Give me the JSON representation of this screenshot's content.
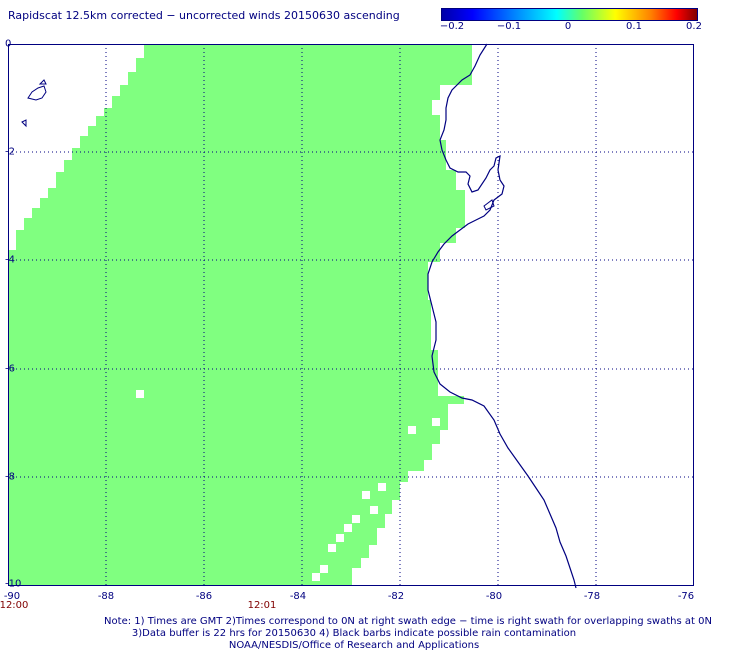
{
  "title": "Rapidscat 12.5km corrected − uncorrected winds 20150630 ascending",
  "colorbar": {
    "labels": [
      "−0.2",
      "−0.1",
      "0",
      "0.1",
      "0.2"
    ],
    "colors": [
      "#0000a8",
      "#0000ff",
      "#00ffff",
      "#66ff66",
      "#ffff00",
      "#ff8000",
      "#ff0000",
      "#800000"
    ]
  },
  "map": {
    "lon_range": [
      -90,
      -76
    ],
    "lat_range": [
      -10,
      0
    ],
    "x_tick_labels": [
      "-90",
      "-88",
      "-86",
      "-84",
      "-82",
      "-80",
      "-78",
      "-76"
    ],
    "y_tick_labels": [
      "0",
      "-2",
      "-4",
      "-6",
      "-8",
      "-10"
    ],
    "swath_color": "#80ff80",
    "coast_color": "#000080",
    "grid": "dotted"
  },
  "times": [
    "12:00",
    "12:01"
  ],
  "notes": [
    "Note: 1) Times are GMT 2)Times correspond to 0N at right swath edge − time is right swath for overlapping swaths at 0N",
    "3)Data buffer is 22 hrs for 20150630 4) Black barbs indicate possible rain contamination",
    "NOAA/NESDIS/Office of Research and Applications"
  ]
}
